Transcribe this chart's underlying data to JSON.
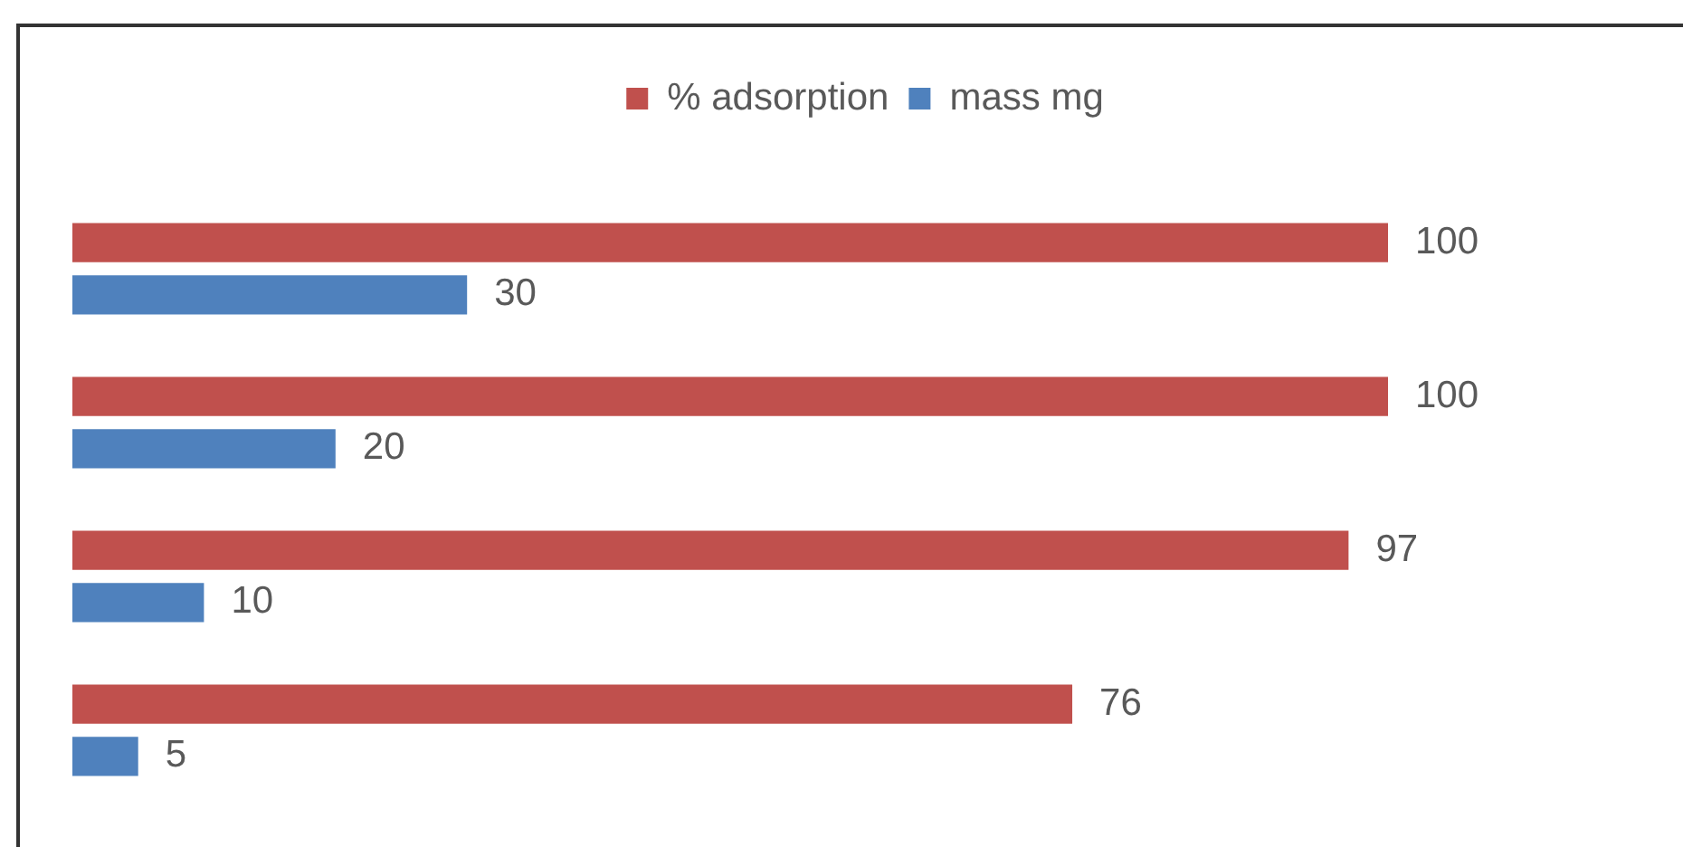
{
  "chart_data": {
    "type": "bar",
    "orientation": "horizontal",
    "categories": [
      null,
      null,
      null,
      null
    ],
    "series": [
      {
        "name": "% adsorption",
        "color": "#c0504d",
        "values": [
          100,
          100,
          97,
          76
        ]
      },
      {
        "name": "mass mg",
        "color": "#4f81bd",
        "values": [
          30,
          20,
          10,
          5
        ]
      }
    ],
    "data_labels": true,
    "legend": "top",
    "tick_labels": false
  }
}
